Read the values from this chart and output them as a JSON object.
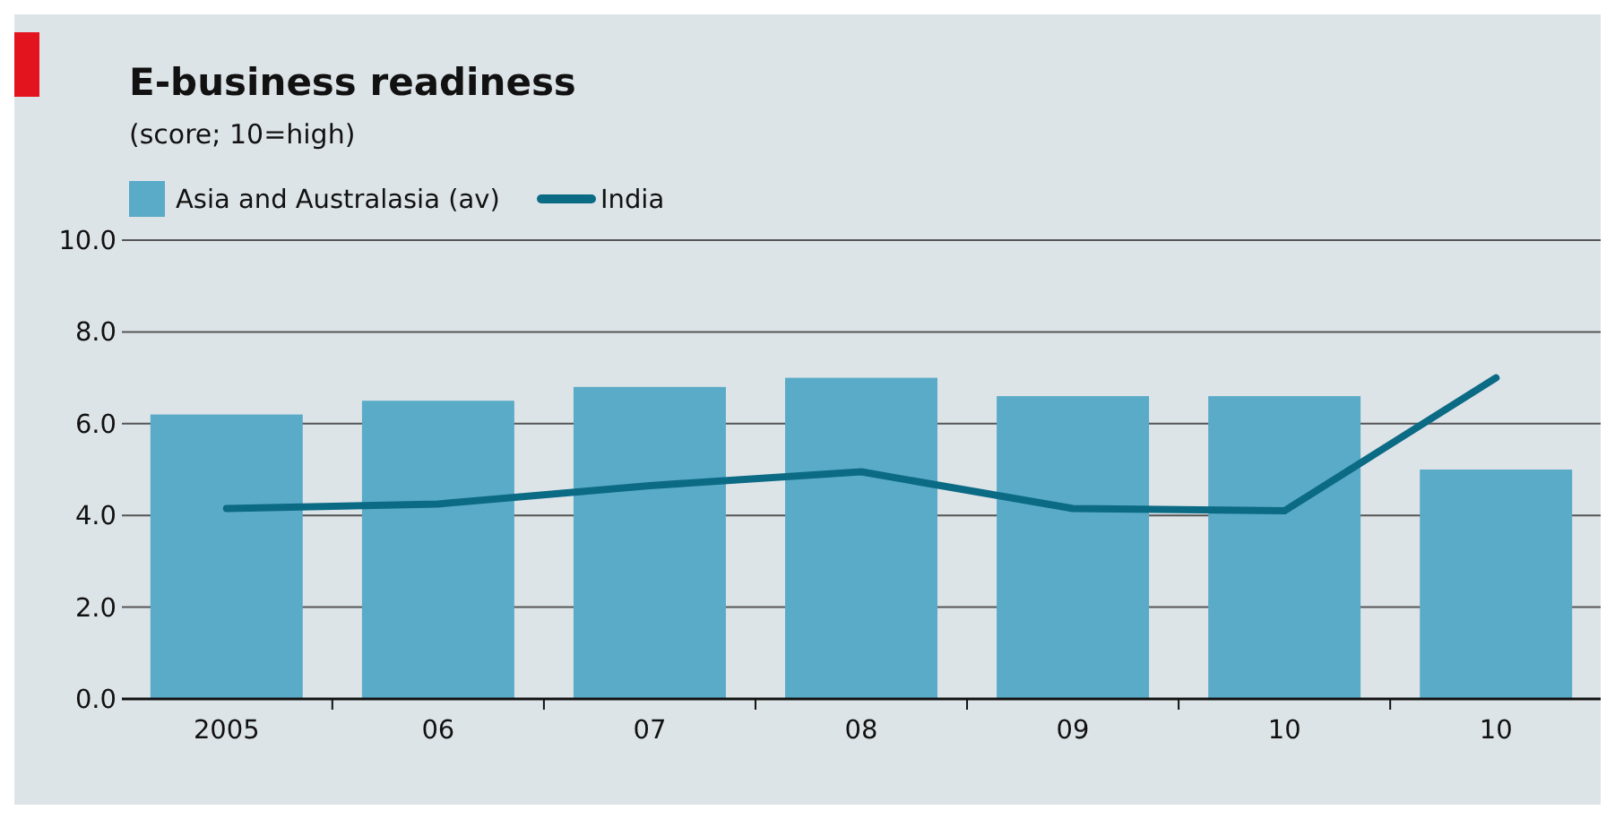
{
  "chart_data": {
    "type": "bar",
    "title": "E-business readiness",
    "subtitle": "(score; 10=high)",
    "categories": [
      "2005",
      "06",
      "07",
      "08",
      "09",
      "10",
      "10"
    ],
    "series": [
      {
        "name": "Asia and Australasia (av)",
        "color": "#5aabc8",
        "values": [
          6.2,
          6.5,
          6.8,
          7.0,
          6.6,
          6.6,
          5.0
        ]
      },
      {
        "name": "India",
        "type": "line",
        "color": "#0b6a84",
        "values": [
          4.15,
          4.25,
          4.65,
          4.95,
          4.15,
          4.1,
          7.0
        ]
      }
    ],
    "ylim": [
      0,
      10
    ],
    "yticks": [
      {
        "value": 0,
        "label": "0.0"
      },
      {
        "value": 2,
        "label": "2.0"
      },
      {
        "value": 4,
        "label": "4.0"
      },
      {
        "value": 6,
        "label": "6.0"
      },
      {
        "value": 8,
        "label": "8.0"
      },
      {
        "value": 10,
        "label": "10.0"
      }
    ],
    "grid": "y",
    "legend": "top left",
    "marker": "none",
    "line_style": "solid"
  }
}
